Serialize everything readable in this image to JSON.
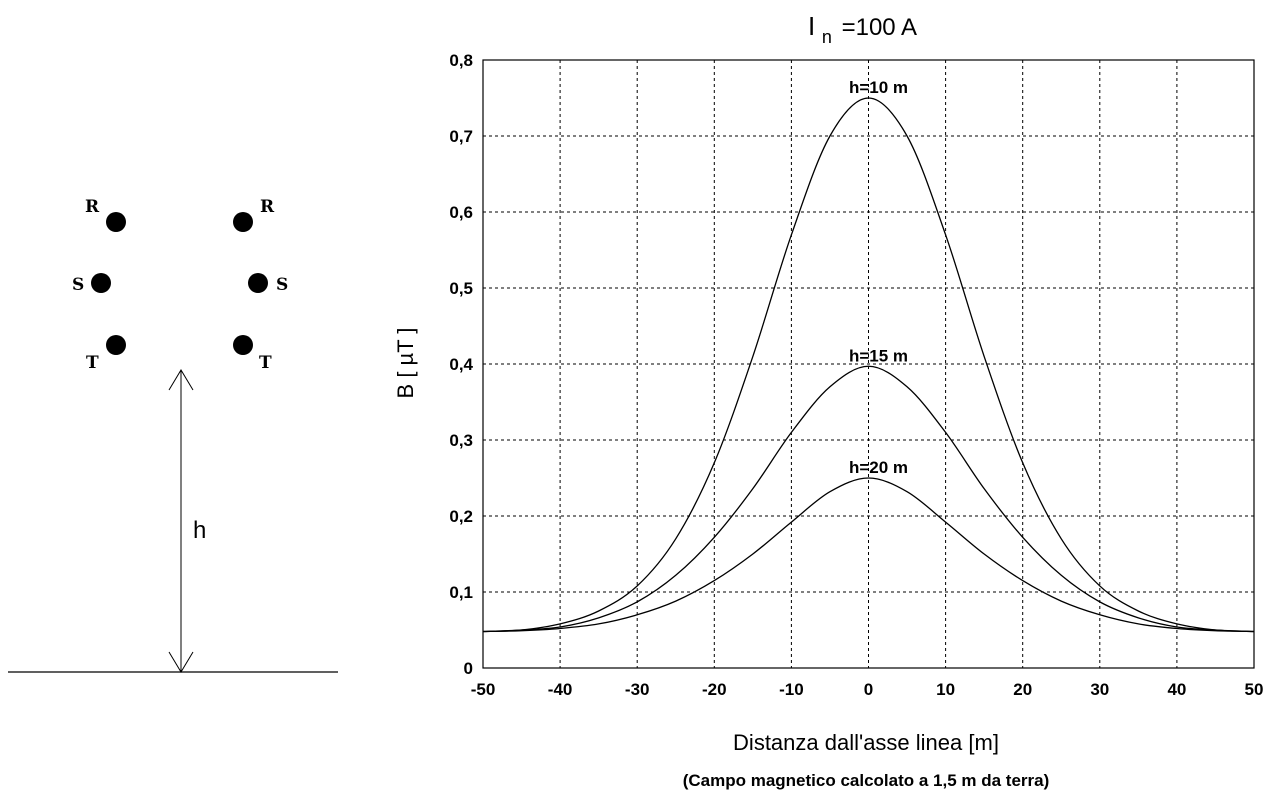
{
  "diagram": {
    "phases": [
      {
        "label": "R",
        "side": "left"
      },
      {
        "label": "S",
        "side": "left"
      },
      {
        "label": "T",
        "side": "left"
      },
      {
        "label": "R",
        "side": "right"
      },
      {
        "label": "S",
        "side": "right"
      },
      {
        "label": "T",
        "side": "right"
      }
    ],
    "height_label": "h"
  },
  "chart_data": {
    "type": "line",
    "title_main": "I",
    "title_sub": "n",
    "title_rest": "=100 A",
    "xlabel": "Distanza dall'asse linea [m]",
    "ylabel": "B [ µT ]",
    "note": "(Campo magnetico calcolato a 1,5 m da terra)",
    "xlim": [
      -50,
      50
    ],
    "ylim": [
      0,
      0.8
    ],
    "x_ticks": [
      "-50",
      "-40",
      "-30",
      "-20",
      "-10",
      "0",
      "10",
      "20",
      "30",
      "40",
      "50"
    ],
    "y_ticks": [
      "0",
      "0,1",
      "0,2",
      "0,3",
      "0,4",
      "0,5",
      "0,6",
      "0,7",
      "0,8"
    ],
    "grid": true,
    "x": [
      -50,
      -45,
      -40,
      -35,
      -30,
      -25,
      -20,
      -15,
      -10,
      -5,
      0,
      5,
      10,
      15,
      20,
      25,
      30,
      35,
      40,
      45,
      50
    ],
    "series": [
      {
        "name": "h=10 m",
        "values": [
          0.048,
          0.05,
          0.058,
          0.075,
          0.108,
          0.17,
          0.27,
          0.41,
          0.57,
          0.7,
          0.75,
          0.7,
          0.57,
          0.41,
          0.27,
          0.17,
          0.108,
          0.075,
          0.058,
          0.05,
          0.048
        ]
      },
      {
        "name": "h=15 m",
        "values": [
          0.048,
          0.05,
          0.054,
          0.066,
          0.087,
          0.122,
          0.172,
          0.236,
          0.31,
          0.37,
          0.397,
          0.37,
          0.31,
          0.236,
          0.172,
          0.122,
          0.087,
          0.066,
          0.054,
          0.05,
          0.048
        ]
      },
      {
        "name": "h=20 m",
        "values": [
          0.048,
          0.049,
          0.052,
          0.058,
          0.07,
          0.088,
          0.115,
          0.15,
          0.192,
          0.232,
          0.25,
          0.232,
          0.192,
          0.15,
          0.115,
          0.088,
          0.07,
          0.058,
          0.052,
          0.049,
          0.048
        ]
      }
    ]
  }
}
